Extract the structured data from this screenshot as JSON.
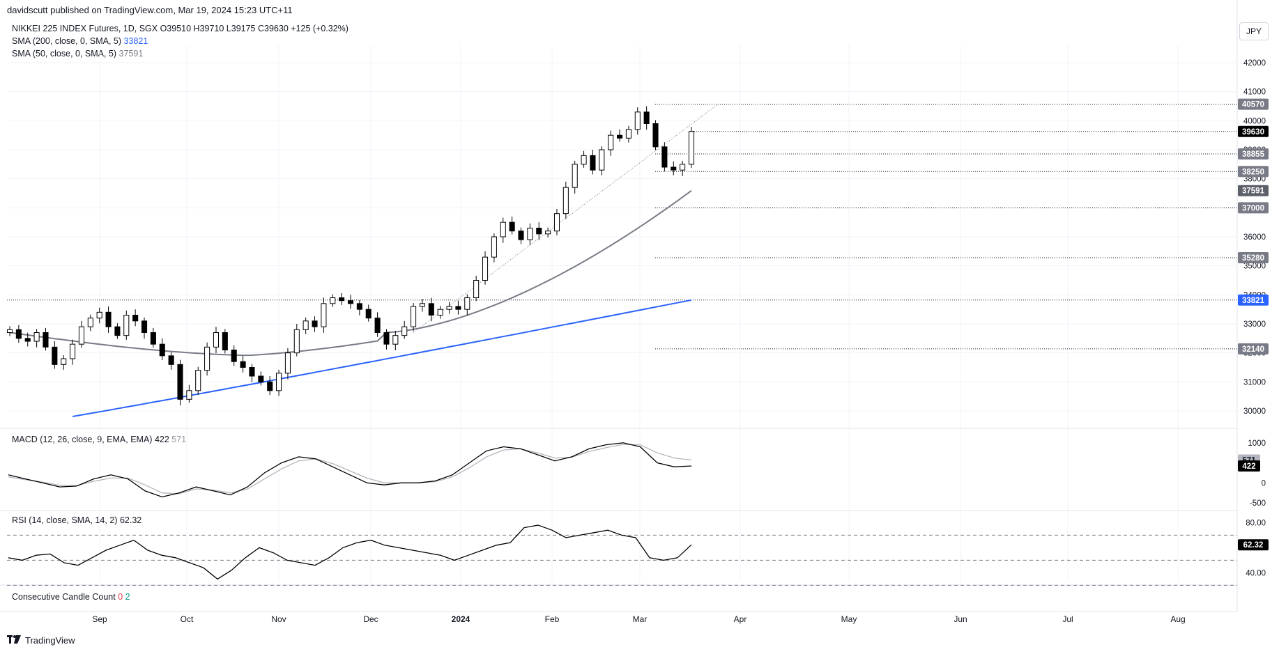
{
  "header": {
    "published": "davidscutt published on TradingView.com, Mar 19, 2024 15:23 UTC+11",
    "symbol_line": "NIKKEI 225 INDEX Futures, 1D, SGX  O39510  H39710  L39175  C39630  +125 (+0.32%)",
    "sma200_label": "SMA (200, close, 0, SMA, 5)",
    "sma200_value": "33821",
    "sma50_label": "SMA (50, close, 0, SMA, 5)",
    "sma50_value": "37591",
    "currency": "JPY"
  },
  "macd_pane": {
    "label": "MACD (12, 26, close, 9, EMA, EMA)",
    "macd_value": "422",
    "signal_value": "571"
  },
  "rsi_pane": {
    "label": "RSI (14, close, SMA, 14, 2)",
    "value": "62.32"
  },
  "ccc_pane": {
    "label": "Consecutive Candle Count",
    "down": "0",
    "up": "2"
  },
  "footer": {
    "brand": "TradingView"
  },
  "colors": {
    "sma200": "#2962ff",
    "sma50": "#787b86",
    "up": "#ffffff",
    "down": "#000000",
    "rsi_up": "#089981",
    "rsi_down": "#f23645"
  },
  "chart_data": [
    {
      "type": "candlestick",
      "title": "NIKKEI 225 INDEX Futures, 1D, SGX",
      "x_ticks": [
        "Sep",
        "Oct",
        "Nov",
        "Dec",
        "2024",
        "Feb",
        "Mar",
        "Apr",
        "May",
        "Jun",
        "Jul",
        "Aug"
      ],
      "y_ticks": [
        30000,
        31000,
        32000,
        33000,
        34000,
        35000,
        36000,
        37000,
        38000,
        39000,
        40000,
        41000,
        42000
      ],
      "ylim": [
        29400,
        42600
      ],
      "series": [
        {
          "name": "SMA (200, close, 0, SMA, 5)",
          "values_approx": "rising from ~29400 (Sep) to 33821 (Mar 19)"
        },
        {
          "name": "SMA (50, close, 0, SMA, 5)",
          "values_approx": "~32700 Aug, ~32000 Nov, ~33200 Jan, 37591 Mar 19"
        }
      ],
      "close_path": [
        32800,
        32500,
        32400,
        32700,
        32200,
        31600,
        31800,
        32300,
        32900,
        33200,
        33400,
        32900,
        32600,
        33300,
        33100,
        32700,
        32300,
        31900,
        31600,
        30400,
        30700,
        31400,
        32200,
        32700,
        32100,
        31700,
        31500,
        31200,
        31000,
        30700,
        31300,
        32000,
        32800,
        33100,
        32900,
        33700,
        33900,
        33800,
        33700,
        33500,
        33200,
        32700,
        32300,
        32600,
        32900,
        33600,
        33700,
        33300,
        33500,
        33600,
        33500,
        33900,
        34500,
        35300,
        36000,
        36500,
        36200,
        35900,
        36300,
        36100,
        36200,
        36800,
        37700,
        38500,
        38800,
        38300,
        39000,
        39500,
        39400,
        39700,
        40300,
        39900,
        39100,
        38400,
        38300,
        38500,
        39630
      ],
      "horizontal_levels": [
        {
          "value": 40570,
          "label": "40570"
        },
        {
          "value": 39630,
          "label": "39630",
          "style": "last"
        },
        {
          "value": 38855,
          "label": "38855"
        },
        {
          "value": 38250,
          "label": "38250"
        },
        {
          "value": 37591,
          "label": "37591",
          "style": "sma50"
        },
        {
          "value": 37000,
          "label": "37000"
        },
        {
          "value": 35280,
          "label": "35280"
        },
        {
          "value": 33821,
          "label": "33821",
          "style": "sma200"
        },
        {
          "value": 32140,
          "label": "32140"
        }
      ]
    },
    {
      "type": "line",
      "title": "MACD (12, 26, close, 9, EMA, EMA)",
      "y_ticks": [
        -500,
        0,
        1000
      ],
      "ylim": [
        -550,
        1100
      ],
      "series": [
        {
          "name": "MACD",
          "last": 422,
          "values": [
            200,
            100,
            0,
            -100,
            -80,
            100,
            200,
            100,
            -200,
            -350,
            -250,
            -100,
            -200,
            -300,
            -100,
            250,
            500,
            650,
            600,
            400,
            200,
            0,
            -50,
            0,
            0,
            50,
            200,
            500,
            800,
            900,
            850,
            700,
            550,
            650,
            850,
            950,
            1000,
            900,
            500,
            400,
            422
          ]
        },
        {
          "name": "Signal",
          "last": 571,
          "values": [
            150,
            80,
            20,
            -60,
            -70,
            40,
            120,
            120,
            -50,
            -250,
            -270,
            -150,
            -180,
            -250,
            -150,
            100,
            350,
            550,
            600,
            480,
            300,
            120,
            0,
            0,
            0,
            30,
            150,
            380,
            650,
            820,
            850,
            750,
            620,
            640,
            780,
            880,
            960,
            950,
            750,
            620,
            571
          ]
        }
      ]
    },
    {
      "type": "line",
      "title": "RSI (14, close, SMA, 14, 2)",
      "y_ticks": [
        40,
        80
      ],
      "ylim": [
        33,
        83
      ],
      "levels": [
        70,
        50,
        30
      ],
      "series": [
        {
          "name": "RSI",
          "last": 62.32,
          "values": [
            52,
            50,
            54,
            55,
            48,
            46,
            52,
            58,
            62,
            66,
            58,
            54,
            52,
            48,
            44,
            35,
            42,
            52,
            60,
            56,
            50,
            48,
            46,
            52,
            60,
            64,
            66,
            62,
            60,
            58,
            56,
            54,
            50,
            54,
            58,
            62,
            64,
            76,
            78,
            74,
            68,
            70,
            72,
            74,
            70,
            68,
            52,
            50,
            52,
            62.32
          ]
        }
      ]
    }
  ]
}
